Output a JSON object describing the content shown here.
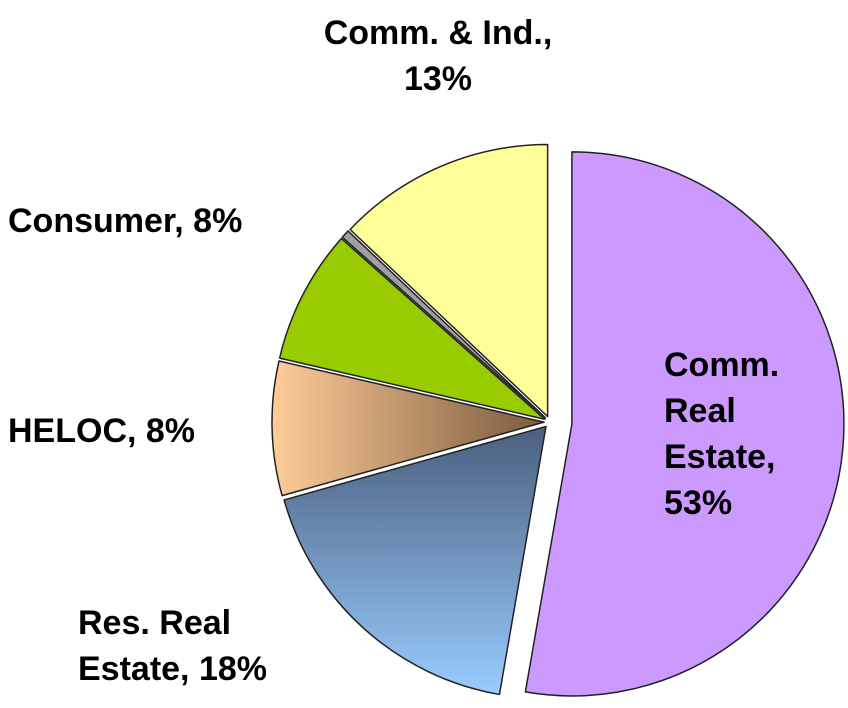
{
  "chart_data": {
    "type": "pie",
    "labels": [
      "Comm. Real Estate, 53%",
      "Res. Real Estate, 18%",
      "HELOC, 8%",
      "Consumer, 8%",
      null,
      "Comm. & Ind., 13%"
    ],
    "values": [
      53,
      18,
      8,
      8,
      0.5,
      13
    ],
    "colors": [
      "#cc99ff",
      [
        "#4a5f7e",
        "#99ccff"
      ],
      [
        "#ffcc99",
        "#7a5a3c"
      ],
      "#99cc00",
      "#a0a0a0",
      "#ffff99"
    ]
  }
}
